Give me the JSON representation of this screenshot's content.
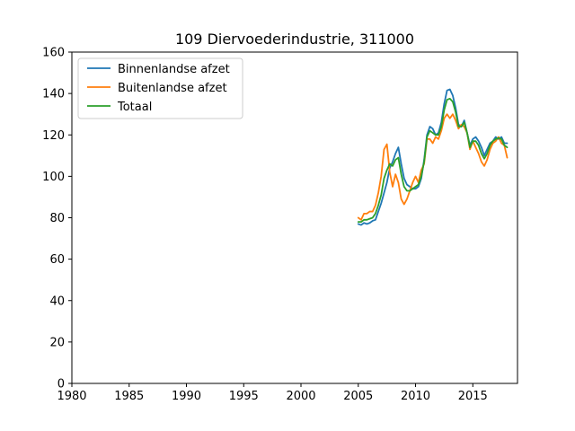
{
  "chart_data": {
    "type": "line",
    "title": "109 Diervoederindustrie, 311000",
    "xlabel": "",
    "ylabel": "",
    "xlim": [
      1980,
      2018.9
    ],
    "ylim": [
      0,
      160
    ],
    "x_ticks": [
      1980,
      1985,
      1990,
      1995,
      2000,
      2005,
      2010,
      2015
    ],
    "y_ticks": [
      0,
      20,
      40,
      60,
      80,
      100,
      120,
      140,
      160
    ],
    "grid": false,
    "legend_position": "upper-left",
    "series": [
      {
        "name": "Binnenlandse afzet",
        "color": "#1f77b4",
        "points": [
          [
            2005.0,
            77
          ],
          [
            2005.25,
            76.5
          ],
          [
            2005.5,
            77.5
          ],
          [
            2005.75,
            77
          ],
          [
            2006.0,
            77.5
          ],
          [
            2006.25,
            78.5
          ],
          [
            2006.5,
            79
          ],
          [
            2006.75,
            83
          ],
          [
            2007.0,
            87
          ],
          [
            2007.25,
            92
          ],
          [
            2007.5,
            97
          ],
          [
            2007.75,
            104
          ],
          [
            2008.0,
            107
          ],
          [
            2008.25,
            111
          ],
          [
            2008.5,
            114
          ],
          [
            2008.75,
            106
          ],
          [
            2009.0,
            99
          ],
          [
            2009.25,
            96
          ],
          [
            2009.5,
            95
          ],
          [
            2009.75,
            94
          ],
          [
            2010.0,
            94
          ],
          [
            2010.25,
            95
          ],
          [
            2010.5,
            99
          ],
          [
            2010.75,
            108
          ],
          [
            2011.0,
            120
          ],
          [
            2011.25,
            124
          ],
          [
            2011.5,
            123
          ],
          [
            2011.75,
            120
          ],
          [
            2012.0,
            121
          ],
          [
            2012.25,
            126
          ],
          [
            2012.5,
            135
          ],
          [
            2012.75,
            141.5
          ],
          [
            2013.0,
            142
          ],
          [
            2013.25,
            139
          ],
          [
            2013.5,
            133
          ],
          [
            2013.75,
            125
          ],
          [
            2014.0,
            124
          ],
          [
            2014.25,
            127
          ],
          [
            2014.5,
            121
          ],
          [
            2014.75,
            115
          ],
          [
            2015.0,
            118
          ],
          [
            2015.25,
            119
          ],
          [
            2015.5,
            117
          ],
          [
            2015.75,
            114
          ],
          [
            2016.0,
            110
          ],
          [
            2016.25,
            113
          ],
          [
            2016.5,
            116
          ],
          [
            2016.75,
            117
          ],
          [
            2017.0,
            119
          ],
          [
            2017.25,
            118
          ],
          [
            2017.5,
            119
          ],
          [
            2017.75,
            116
          ],
          [
            2018.0,
            116
          ]
        ]
      },
      {
        "name": "Buitenlandse afzet",
        "color": "#ff7f0e",
        "points": [
          [
            2005.0,
            80
          ],
          [
            2005.25,
            79
          ],
          [
            2005.5,
            82
          ],
          [
            2005.75,
            82
          ],
          [
            2006.0,
            83
          ],
          [
            2006.25,
            83
          ],
          [
            2006.5,
            86
          ],
          [
            2006.75,
            92
          ],
          [
            2007.0,
            100
          ],
          [
            2007.25,
            113
          ],
          [
            2007.5,
            115.5
          ],
          [
            2007.75,
            102
          ],
          [
            2008.0,
            95
          ],
          [
            2008.25,
            101
          ],
          [
            2008.5,
            97
          ],
          [
            2008.75,
            89
          ],
          [
            2009.0,
            86.5
          ],
          [
            2009.25,
            89
          ],
          [
            2009.5,
            93
          ],
          [
            2009.75,
            97
          ],
          [
            2010.0,
            100
          ],
          [
            2010.25,
            97
          ],
          [
            2010.5,
            103
          ],
          [
            2010.75,
            106
          ],
          [
            2011.0,
            118
          ],
          [
            2011.25,
            118
          ],
          [
            2011.5,
            116
          ],
          [
            2011.75,
            119
          ],
          [
            2012.0,
            118
          ],
          [
            2012.25,
            122
          ],
          [
            2012.5,
            128
          ],
          [
            2012.75,
            130
          ],
          [
            2013.0,
            128
          ],
          [
            2013.25,
            130
          ],
          [
            2013.5,
            127
          ],
          [
            2013.75,
            123
          ],
          [
            2014.0,
            125
          ],
          [
            2014.25,
            124
          ],
          [
            2014.5,
            121
          ],
          [
            2014.75,
            113
          ],
          [
            2015.0,
            117
          ],
          [
            2015.25,
            114
          ],
          [
            2015.5,
            111
          ],
          [
            2015.75,
            107
          ],
          [
            2016.0,
            105
          ],
          [
            2016.25,
            108
          ],
          [
            2016.5,
            113
          ],
          [
            2016.75,
            116
          ],
          [
            2017.0,
            117
          ],
          [
            2017.25,
            119
          ],
          [
            2017.5,
            116
          ],
          [
            2017.75,
            115
          ],
          [
            2018.0,
            109
          ]
        ]
      },
      {
        "name": "Totaal",
        "color": "#2ca02c",
        "points": [
          [
            2005.0,
            78
          ],
          [
            2005.25,
            78
          ],
          [
            2005.5,
            79
          ],
          [
            2005.75,
            79
          ],
          [
            2006.0,
            79.5
          ],
          [
            2006.25,
            80
          ],
          [
            2006.5,
            82
          ],
          [
            2006.75,
            86
          ],
          [
            2007.0,
            91
          ],
          [
            2007.25,
            99
          ],
          [
            2007.5,
            103
          ],
          [
            2007.75,
            106
          ],
          [
            2008.0,
            105
          ],
          [
            2008.25,
            108
          ],
          [
            2008.5,
            109
          ],
          [
            2008.75,
            101
          ],
          [
            2009.0,
            95
          ],
          [
            2009.25,
            93
          ],
          [
            2009.5,
            93
          ],
          [
            2009.75,
            94
          ],
          [
            2010.0,
            95
          ],
          [
            2010.25,
            96
          ],
          [
            2010.5,
            100
          ],
          [
            2010.75,
            107
          ],
          [
            2011.0,
            119
          ],
          [
            2011.25,
            122
          ],
          [
            2011.5,
            121
          ],
          [
            2011.75,
            120
          ],
          [
            2012.0,
            120
          ],
          [
            2012.25,
            124
          ],
          [
            2012.5,
            132
          ],
          [
            2012.75,
            137
          ],
          [
            2013.0,
            137.5
          ],
          [
            2013.25,
            136
          ],
          [
            2013.5,
            131
          ],
          [
            2013.75,
            124
          ],
          [
            2014.0,
            124
          ],
          [
            2014.25,
            126
          ],
          [
            2014.5,
            121
          ],
          [
            2014.75,
            114
          ],
          [
            2015.0,
            117
          ],
          [
            2015.25,
            117
          ],
          [
            2015.5,
            115
          ],
          [
            2015.75,
            111
          ],
          [
            2016.0,
            108.5
          ],
          [
            2016.25,
            111
          ],
          [
            2016.5,
            115
          ],
          [
            2016.75,
            117
          ],
          [
            2017.0,
            118
          ],
          [
            2017.25,
            118.5
          ],
          [
            2017.5,
            118
          ],
          [
            2017.75,
            115
          ],
          [
            2018.0,
            114
          ]
        ]
      }
    ]
  }
}
